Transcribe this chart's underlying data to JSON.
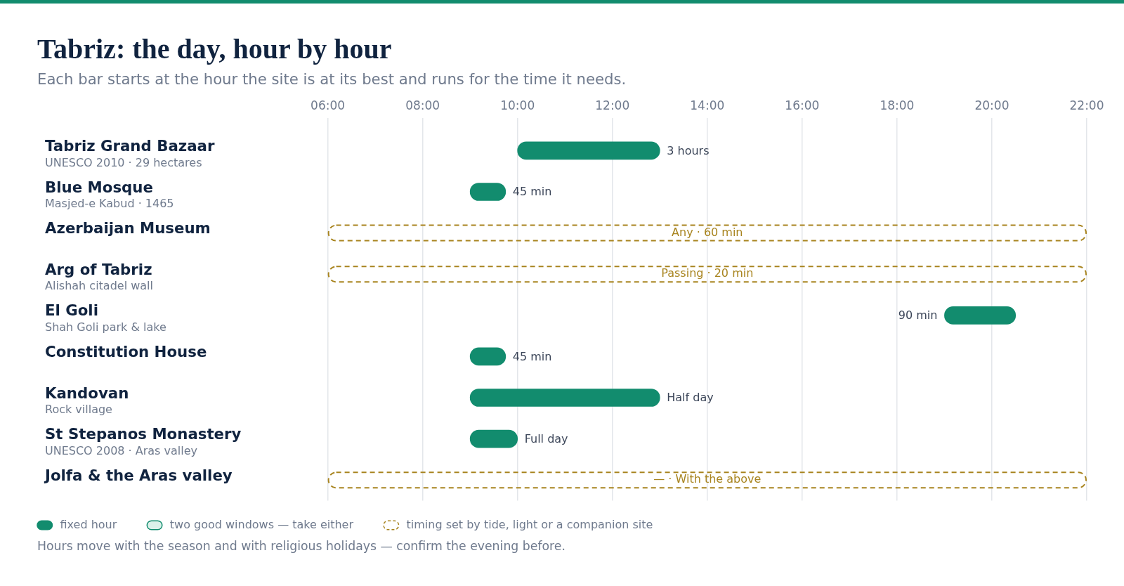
{
  "chart_data": {
    "type": "bar",
    "orientation": "horizontal",
    "title": "Tabriz: the day, hour by hour",
    "subtitle": "Each bar starts at the hour the site is at its best and runs for the time it needs.",
    "categories": [
      "Tabriz Grand Bazaar\nUNESCO 2010 · 29 hectares",
      "Blue Mosque\nMasjed-e Kabud · 1465",
      "Azerbaijan Museum",
      "Arg of Tabriz\nAlishah citadel wall",
      "El Goli\nShah Goli park & lake",
      "Constitution House",
      "Kandovan\nRock village",
      "St Stepanos Monastery\nUNESCO 2008 · Aras valley",
      "Jolfa & the Aras valley"
    ],
    "series": [
      {
        "name": "fixed hour",
        "color": "#128c6e",
        "base": [
          10,
          9,
          null,
          null,
          19,
          9,
          9,
          9,
          null
        ],
        "values": [
          3,
          0.75,
          null,
          null,
          1.5,
          0.75,
          4,
          1,
          null
        ]
      },
      {
        "name": "two good windows — take either",
        "color": "#dcf1ea",
        "values": [
          null,
          null,
          null,
          null,
          null,
          null,
          null,
          null,
          null
        ]
      },
      {
        "name": "timing set by tide, light or a companion site",
        "color": "#a8841f",
        "line_style": "dashed",
        "base": [
          null,
          null,
          6,
          6,
          null,
          null,
          null,
          null,
          6
        ],
        "values": [
          null,
          null,
          16,
          16,
          null,
          null,
          null,
          null,
          16
        ]
      }
    ],
    "xlim": [
      6,
      22
    ],
    "xticks": [
      {
        "value": 6,
        "label": "06:00"
      },
      {
        "value": 8,
        "label": "08:00"
      },
      {
        "value": 10,
        "label": "10:00"
      },
      {
        "value": 12,
        "label": "12:00"
      },
      {
        "value": 14,
        "label": "14:00"
      },
      {
        "value": 16,
        "label": "16:00"
      },
      {
        "value": 18,
        "label": "18:00"
      },
      {
        "value": 20,
        "label": "20:00"
      },
      {
        "value": 22,
        "label": "22:00"
      }
    ],
    "grid": "x",
    "legend": "bottom left",
    "annotations": [
      {
        "text": "3 hours",
        "x": 13,
        "y": "Tabriz Grand Bazaar\nUNESCO 2010 · 29 hectares"
      },
      {
        "text": "45 min",
        "x": 9.75,
        "y": "Blue Mosque\nMasjed-e Kabud · 1465"
      },
      "Any · 60 min",
      "Passing · 20 min",
      {
        "text": "90 min",
        "x": 19,
        "y": "El Goli\nShah Goli park & lake"
      },
      {
        "text": "45 min",
        "x": 9.75,
        "y": "Constitution House"
      },
      {
        "text": "Half day",
        "x": 13,
        "y": "Kandovan\nRock village"
      },
      {
        "text": "Full day",
        "x": 10,
        "y": "St Stepanos Monastery\nUNESCO 2008 · Aras valley"
      },
      "— · With the above",
      "Hours move with the season and with religious holidays — confirm the evening before."
    ]
  }
}
